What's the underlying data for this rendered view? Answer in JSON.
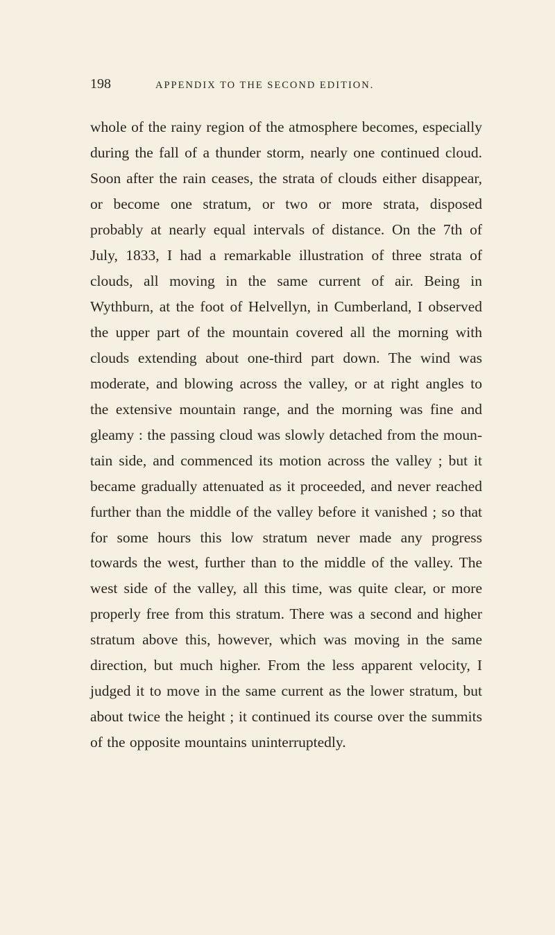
{
  "page": {
    "number": "198",
    "chapter_title": "APPENDIX TO THE SECOND EDITION.",
    "body": "whole of the rainy region of the atmosphere becomes, especially during the fall of a thunder storm, nearly one continued cloud. Soon after the rain ceases, the strata of clouds either disappear, or become one stratum, or two or more strata, disposed probably at nearly equal intervals of distance. On the 7th of July, 1833, I had a remarkable illustration of three strata of clouds, all moving in the same current of air. Being in Wythburn, at the foot of Helvellyn, in Cumberland, I observed the upper part of the mountain covered all the morning with clouds extending about one-third part down. The wind was moderate, and blowing across the valley, or at right angles to the extensive mountain range, and the morning was fine and gleamy : the passing cloud was slowly detached from the moun­tain side, and commenced its motion across the valley ; but it became gradually attenuated as it proceeded, and never reached further than the middle of the valley before it vanished ; so that for some hours this low stratum never made any pro­gress towards the west, further than to the middle of the valley. The west side of the valley, all this time, was quite clear, or more properly free from this stratum. There was a second and higher stratum above this, however, which was moving in the same direction, but much higher. From the less apparent velocity, I judged it to move in the same current as the lower stratum, but about twice the height ; it continued its course over the sum­mits of the opposite mountains uninterruptedly."
  },
  "styles": {
    "background_color": "#f5f0e1",
    "text_color": "#2a2420",
    "page_number_fontsize": 20,
    "chapter_title_fontsize": 14.5,
    "body_fontsize": 21.5,
    "line_height": 1.72
  }
}
